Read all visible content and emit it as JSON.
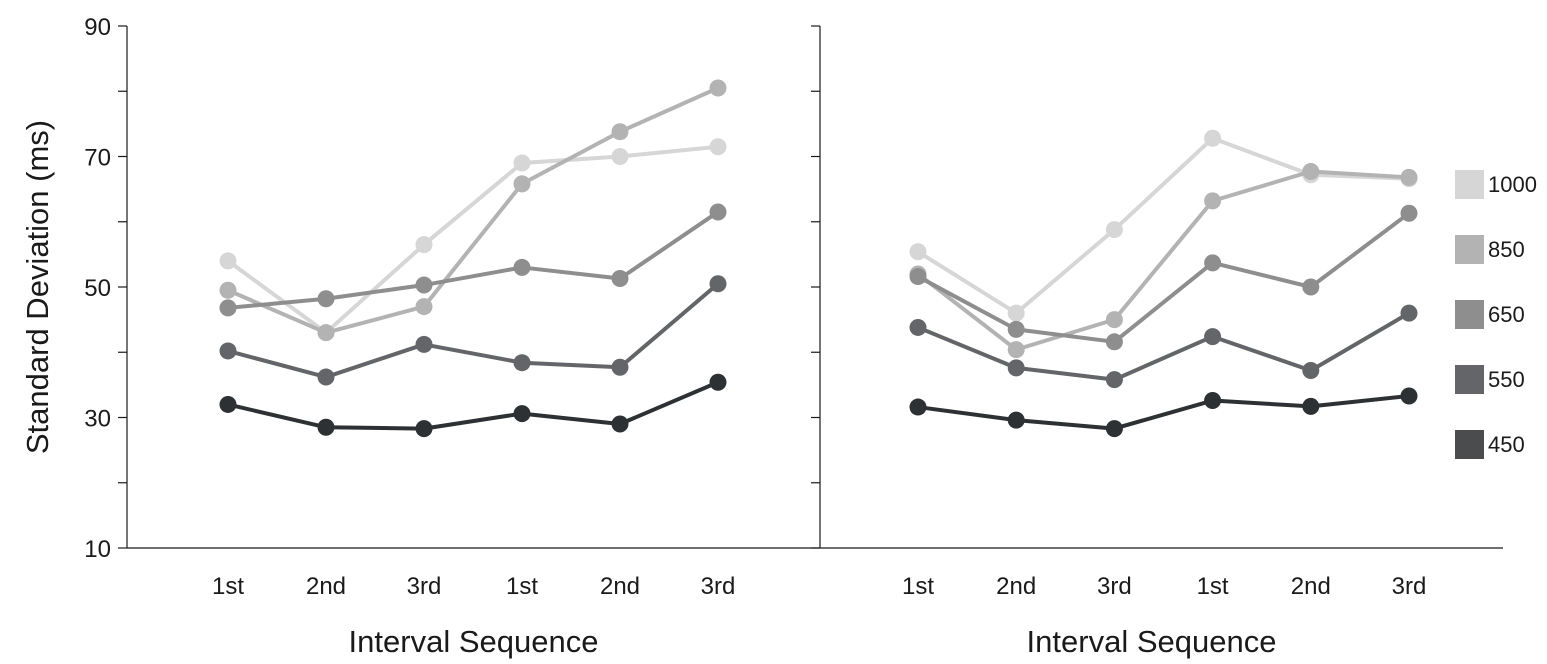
{
  "chart_data": [
    {
      "type": "line",
      "panel": "left",
      "categories": [
        "1st",
        "2nd",
        "3rd",
        "1st",
        "2nd",
        "3rd"
      ],
      "ylabel": "Standard Deviation (ms)",
      "xlabel": "Interval Sequence",
      "ylim": [
        10,
        90
      ],
      "yticks": [
        10,
        30,
        50,
        70,
        90
      ],
      "grid": false,
      "series": [
        {
          "name": "1000",
          "color": "#d6d6d6",
          "values": [
            54,
            43,
            56.5,
            69,
            70,
            71.5
          ]
        },
        {
          "name": "850",
          "color": "#b3b3b3",
          "values": [
            49.5,
            43,
            47,
            65.8,
            73.8,
            80.5
          ]
        },
        {
          "name": "650",
          "color": "#8e8e8e",
          "values": [
            46.8,
            48.2,
            50.3,
            53,
            51.3,
            61.5
          ]
        },
        {
          "name": "550",
          "color": "#636568",
          "values": [
            40.2,
            36.2,
            41.2,
            38.4,
            37.7,
            50.5
          ]
        },
        {
          "name": "450",
          "color": "#2e3133",
          "values": [
            32,
            28.5,
            28.3,
            30.6,
            29,
            35.4
          ]
        }
      ]
    },
    {
      "type": "line",
      "panel": "right",
      "categories": [
        "1st",
        "2nd",
        "3rd",
        "1st",
        "2nd",
        "3rd"
      ],
      "xlabel": "Interval Sequence",
      "ylim": [
        10,
        90
      ],
      "grid": false,
      "legend_position": "right",
      "series": [
        {
          "name": "1000",
          "color": "#d6d6d6",
          "values": [
            55.4,
            46,
            58.8,
            72.8,
            67.2,
            66.6
          ]
        },
        {
          "name": "850",
          "color": "#b3b3b3",
          "values": [
            52,
            40.4,
            45,
            63.2,
            67.7,
            66.8
          ]
        },
        {
          "name": "650",
          "color": "#8e8e8e",
          "values": [
            51.6,
            43.5,
            41.6,
            53.7,
            50,
            61.3
          ]
        },
        {
          "name": "550",
          "color": "#636568",
          "values": [
            43.8,
            37.6,
            35.8,
            42.4,
            37.2,
            46
          ]
        },
        {
          "name": "450",
          "color": "#2e3133",
          "values": [
            31.6,
            29.6,
            28.3,
            32.6,
            31.7,
            33.3
          ]
        }
      ]
    }
  ],
  "legend": [
    {
      "label": "1000",
      "color": "#d6d6d6"
    },
    {
      "label": "850",
      "color": "#b3b3b3"
    },
    {
      "label": "650",
      "color": "#8e8e8e"
    },
    {
      "label": "550",
      "color": "#636568"
    },
    {
      "label": "450",
      "color": "#4a4c4e"
    }
  ]
}
